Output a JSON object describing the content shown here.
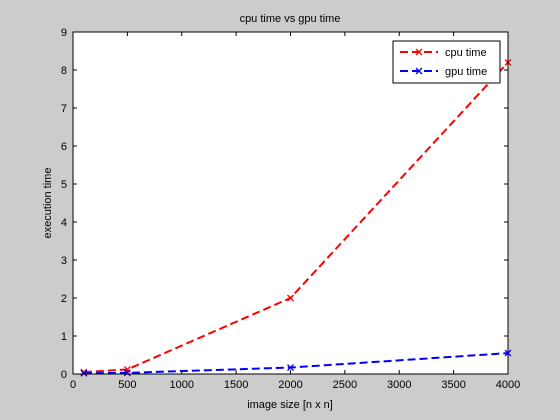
{
  "chart_data": {
    "type": "line",
    "title": "cpu time vs gpu time",
    "xlabel": "image size [n x n]",
    "ylabel": "execution time",
    "xlim": [
      0,
      4000
    ],
    "ylim": [
      0,
      9
    ],
    "xticks": [
      0,
      500,
      1000,
      1500,
      2000,
      2500,
      3000,
      3500,
      4000
    ],
    "yticks": [
      0,
      1,
      2,
      3,
      4,
      5,
      6,
      7,
      8,
      9
    ],
    "grid": false,
    "legend_position": "top-right",
    "series": [
      {
        "name": "cpu time",
        "color": "#ff0000",
        "line_style": "dashed",
        "marker": "x",
        "x": [
          100,
          500,
          2000,
          4000
        ],
        "y": [
          0.05,
          0.12,
          2.0,
          8.2
        ]
      },
      {
        "name": "gpu time",
        "color": "#0000ff",
        "line_style": "dashed",
        "marker": "x",
        "x": [
          100,
          500,
          2000,
          4000
        ],
        "y": [
          0.02,
          0.03,
          0.17,
          0.55
        ]
      }
    ]
  }
}
